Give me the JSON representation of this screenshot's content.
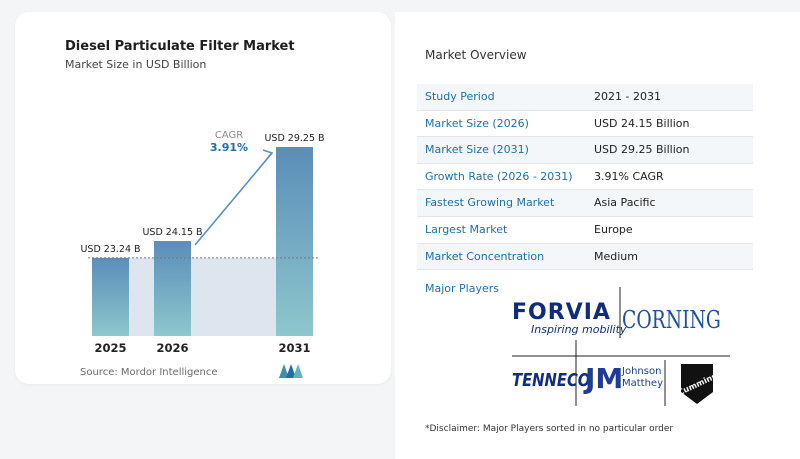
{
  "chart": {
    "title": "Diesel Particulate Filter Market",
    "subtitle": "Market Size in USD Billion",
    "source": "Source:  Mordor Intelligence",
    "cagr_label": "CAGR",
    "cagr_value": "3.91%"
  },
  "chart_data": {
    "type": "bar",
    "categories": [
      "2025",
      "2026",
      "2031"
    ],
    "values": [
      23.24,
      24.15,
      29.25
    ],
    "value_labels": [
      "USD 23.24 B",
      "USD 24.15 B",
      "USD 29.25 B"
    ],
    "title": "Diesel Particulate Filter Market",
    "subtitle": "Market Size in USD Billion",
    "ylabel": "",
    "xlabel": "",
    "annotation": "CAGR 3.91%",
    "colors": {
      "bar_top": "#5b8db8",
      "bar_bottom": "#8ec7cd",
      "band": "#dde6ee",
      "arrow": "#5a8fc0"
    }
  },
  "overview": {
    "title": "Market Overview",
    "rows": [
      {
        "label": "Study Period",
        "value": "2021 - 2031"
      },
      {
        "label": "Market Size (2026)",
        "value": "USD 24.15 Billion"
      },
      {
        "label": "Market Size (2031)",
        "value": "USD 29.25 Billion"
      },
      {
        "label": "Growth Rate (2026 - 2031)",
        "value": "3.91% CAGR"
      },
      {
        "label": "Fastest Growing Market",
        "value": "Asia Pacific"
      },
      {
        "label": "Largest Market",
        "value": "Europe"
      },
      {
        "label": "Market Concentration",
        "value": "Medium"
      }
    ],
    "players_label": "Major Players",
    "disclaimer": "*Disclaimer: Major Players sorted in no particular order"
  },
  "players": {
    "forvia": "FORVIA",
    "forvia_tagline": "Inspiring mobility",
    "corning": "CORNING",
    "tenneco": "TENNECO",
    "jm": "JM",
    "jm_line1": "Johnson",
    "jm_line2": "Matthey",
    "cummins": "Cummins"
  }
}
